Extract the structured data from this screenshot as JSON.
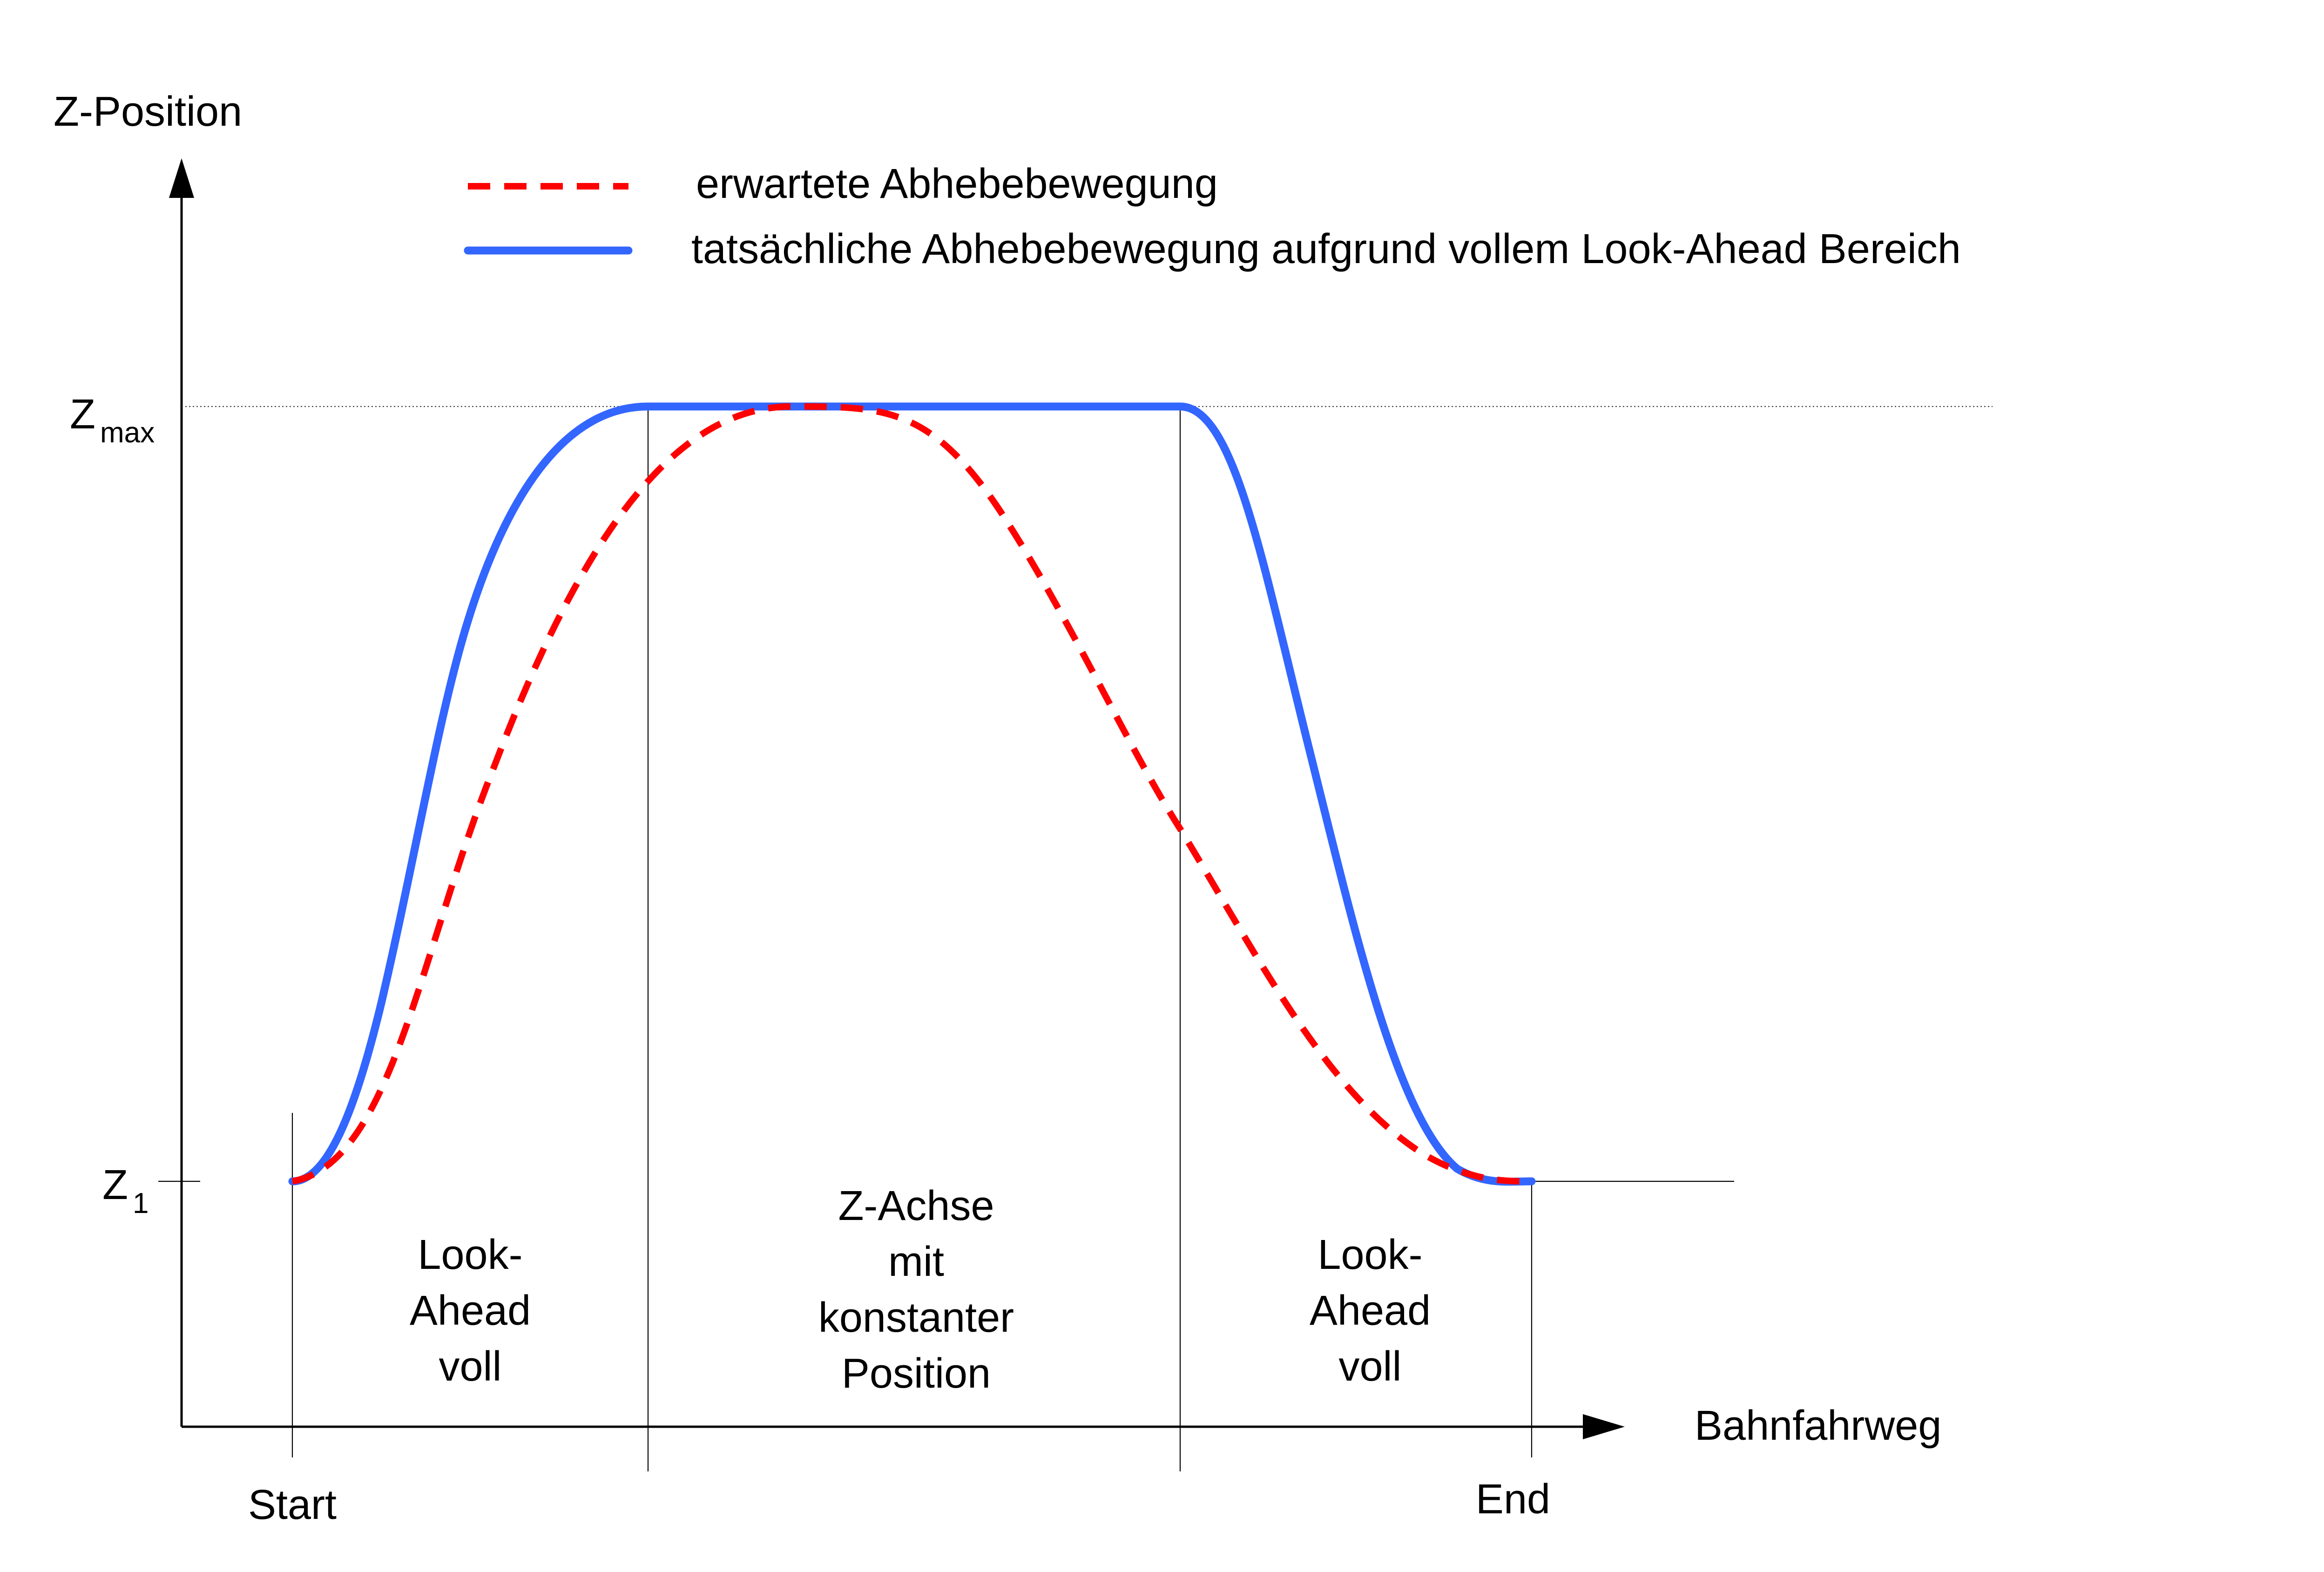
{
  "diagram": {
    "y_axis_label": "Z-Position",
    "x_axis_label": "Bahnfahrweg",
    "y_tick_zmax_main": "Z",
    "y_tick_zmax_sub": "max",
    "y_tick_z1_main": "Z",
    "y_tick_z1_sub": "1",
    "x_tick_start": "Start",
    "x_tick_end": "End",
    "legend": [
      {
        "label": "erwartete Abhebebewegung",
        "color": "#ff0000",
        "style": "dashed"
      },
      {
        "label": "tatsächliche Abhebebewegung aufgrund vollem Look-Ahead Bereich",
        "color": "#3366ff",
        "style": "solid"
      }
    ],
    "regions": {
      "left": [
        "Look-",
        "Ahead",
        "voll"
      ],
      "middle": [
        "Z-Achse",
        "mit",
        "konstanter",
        "Position"
      ],
      "right": [
        "Look-",
        "Ahead",
        "voll"
      ]
    }
  }
}
